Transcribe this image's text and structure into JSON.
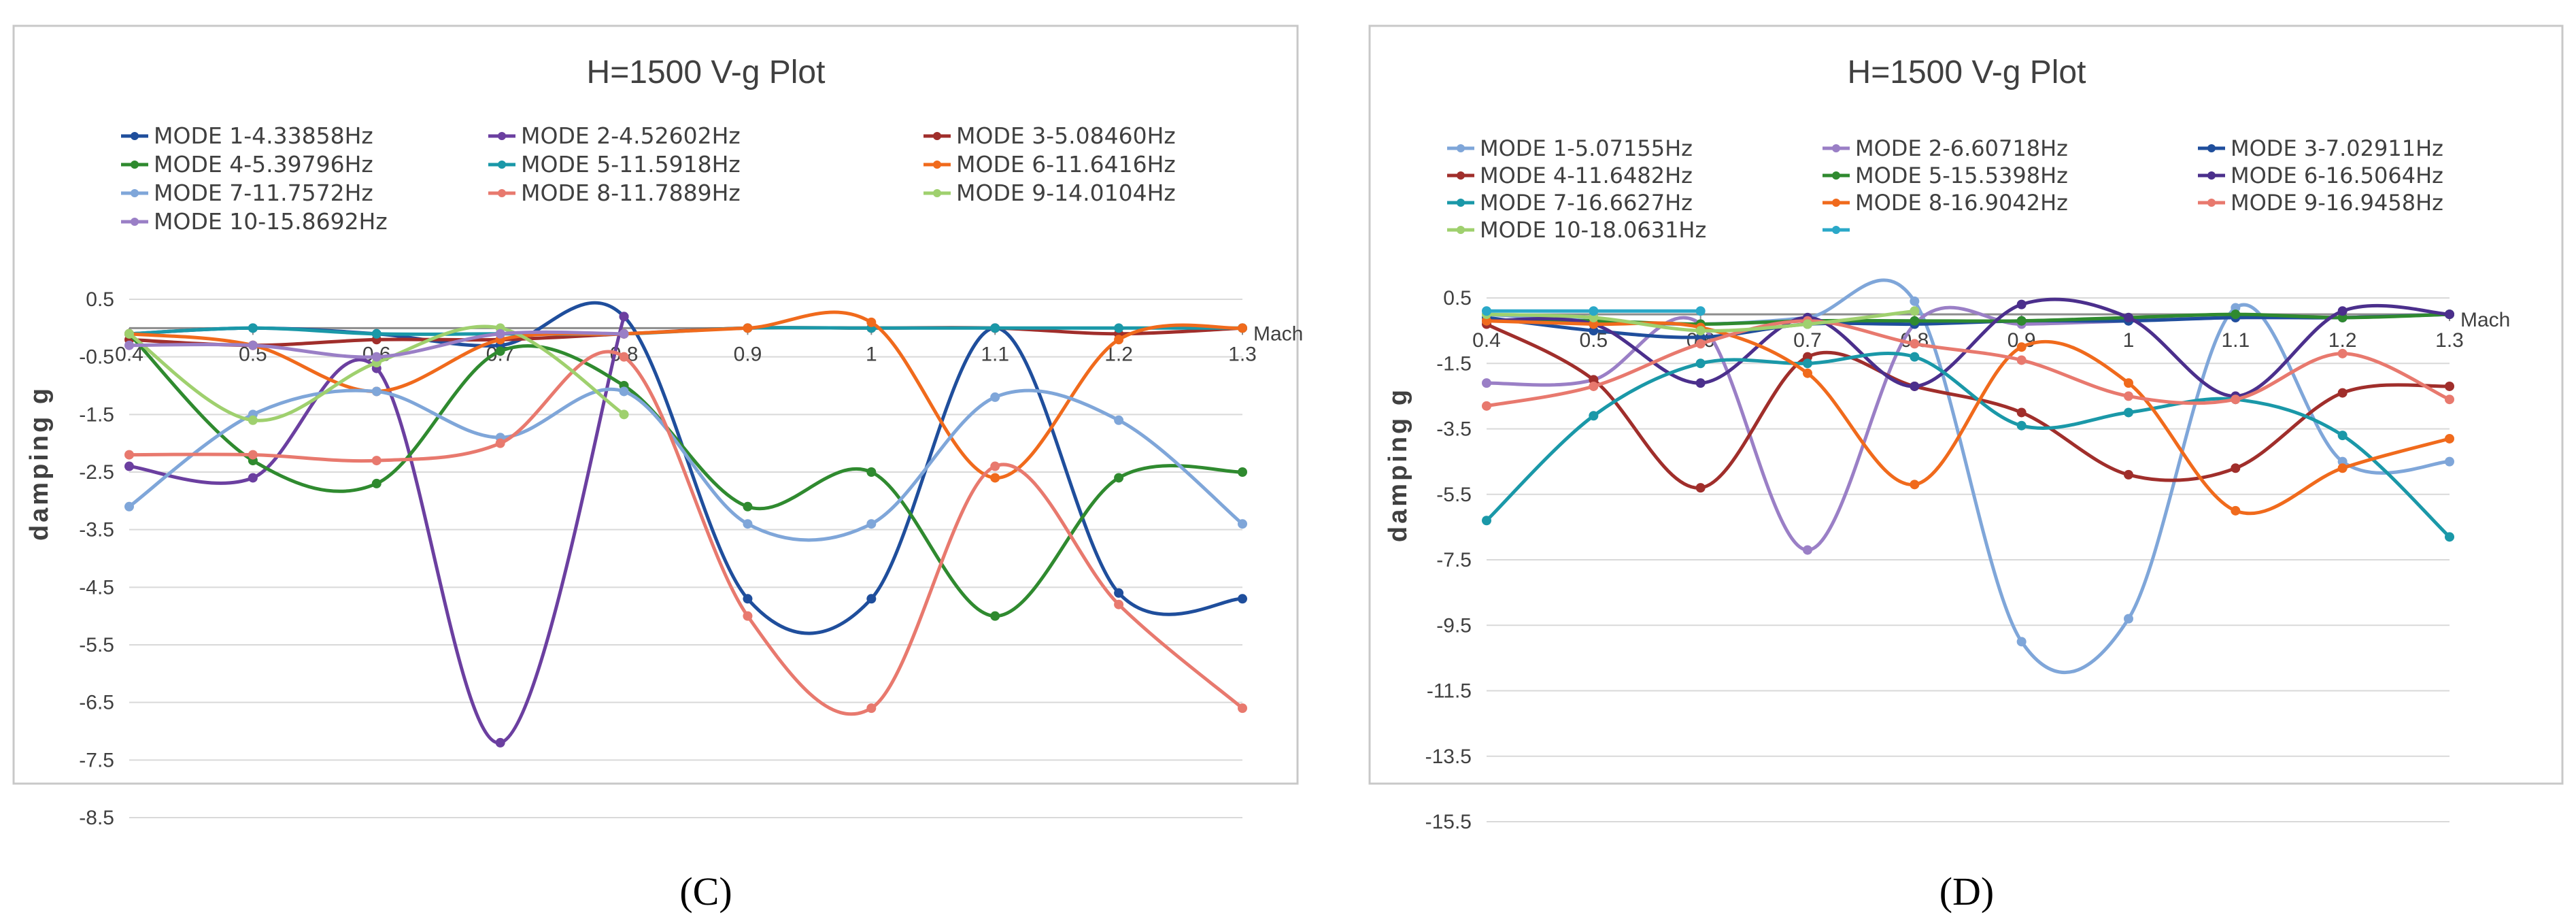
{
  "chart_data": [
    {
      "type": "line",
      "title": "H=1500 V-g Plot",
      "xlabel": "Mach",
      "ylabel": "damping g",
      "caption": "(C)",
      "x": [
        0.4,
        0.5,
        0.6,
        0.7,
        0.8,
        0.9,
        1.0,
        1.1,
        1.2,
        1.3
      ],
      "x_ticks": [
        "0.4",
        "0.5",
        "0.6",
        "0.7",
        "0.8",
        "0.9",
        "1",
        "1.1",
        "1.2",
        "1.3"
      ],
      "ylim": [
        -8.5,
        0.5
      ],
      "y_ticks": [
        "0.5",
        "-0.5",
        "-1.5",
        "-2.5",
        "-3.5",
        "-4.5",
        "-5.5",
        "-6.5",
        "-7.5",
        "-8.5"
      ],
      "series": [
        {
          "name": "MODE 1-4.33858Hz",
          "color": "#1f4e9c",
          "values": [
            -0.1,
            0.0,
            -0.1,
            -0.3,
            0.2,
            -4.7,
            -4.7,
            0.0,
            -4.6,
            -4.7
          ]
        },
        {
          "name": "MODE 2-4.52602Hz",
          "color": "#6b3fa0",
          "values": [
            -2.4,
            -2.6,
            -0.7,
            -7.2,
            0.2,
            null,
            null,
            null,
            null,
            null
          ]
        },
        {
          "name": "MODE 3-5.08460Hz",
          "color": "#a02e2b",
          "values": [
            -0.2,
            -0.3,
            -0.2,
            -0.2,
            -0.1,
            0.0,
            0.0,
            0.0,
            -0.1,
            0.0
          ]
        },
        {
          "name": "MODE 4-5.39796Hz",
          "color": "#2f8a2f",
          "values": [
            -0.1,
            -2.3,
            -2.7,
            -0.4,
            -1.0,
            -3.1,
            -2.5,
            -5.0,
            -2.6,
            -2.5
          ]
        },
        {
          "name": "MODE 5-11.5918Hz",
          "color": "#1a98a8",
          "values": [
            -0.1,
            0.0,
            -0.1,
            -0.1,
            -0.1,
            0.0,
            0.0,
            0.0,
            0.0,
            0.0
          ]
        },
        {
          "name": "MODE 6-11.6416Hz",
          "color": "#f06a1c",
          "values": [
            -0.1,
            -0.3,
            -1.1,
            -0.2,
            -0.1,
            0.0,
            0.1,
            -2.6,
            -0.2,
            0.0
          ]
        },
        {
          "name": "MODE 7-11.7572Hz",
          "color": "#7fa6d9",
          "values": [
            -3.1,
            -1.5,
            -1.1,
            -1.9,
            -1.1,
            -3.4,
            -3.4,
            -1.2,
            -1.6,
            -3.4
          ]
        },
        {
          "name": "MODE 8-11.7889Hz",
          "color": "#e8796e",
          "values": [
            -2.2,
            -2.2,
            -2.3,
            -2.0,
            -0.5,
            -5.0,
            -6.6,
            -2.4,
            -4.8,
            -6.6
          ]
        },
        {
          "name": "MODE 9-14.0104Hz",
          "color": "#9fd06e",
          "values": [
            -0.1,
            -1.6,
            -0.6,
            0.0,
            -1.5,
            null,
            null,
            null,
            null,
            null
          ]
        },
        {
          "name": "MODE 10-15.8692Hz",
          "color": "#9a7fc6",
          "values": [
            -0.3,
            -0.3,
            -0.5,
            -0.1,
            -0.1,
            null,
            null,
            null,
            null,
            null
          ]
        }
      ]
    },
    {
      "type": "line",
      "title": "H=1500 V-g Plot",
      "xlabel": "Mach",
      "ylabel": "damping g",
      "caption": "(D)",
      "x": [
        0.4,
        0.5,
        0.6,
        0.7,
        0.8,
        0.9,
        1.0,
        1.1,
        1.2,
        1.3
      ],
      "x_ticks": [
        "0.4",
        "0.5",
        "0.6",
        "0.7",
        "0.8",
        "0.9",
        "1",
        "1.1",
        "1.2",
        "1.3"
      ],
      "ylim": [
        -15.5,
        0.5
      ],
      "y_ticks": [
        "0.5",
        "-1.5",
        "-3.5",
        "-5.5",
        "-7.5",
        "-9.5",
        "-11.5",
        "-13.5",
        "-15.5"
      ],
      "series": [
        {
          "name": "MODE 1-5.07155Hz",
          "color": "#7fa6d9",
          "values": [
            0.0,
            -0.2,
            -0.3,
            -0.1,
            0.4,
            -10.0,
            -9.3,
            0.2,
            -4.5,
            -4.5
          ]
        },
        {
          "name": "MODE 2-6.60718Hz",
          "color": "#9a7fc6",
          "values": [
            -2.1,
            -2.0,
            -0.3,
            -7.2,
            -0.3,
            -0.3,
            -0.2,
            -0.1,
            -0.1,
            0.0
          ]
        },
        {
          "name": "MODE 3-7.02911Hz",
          "color": "#1f4e9c",
          "values": [
            -0.1,
            -0.5,
            -0.7,
            -0.3,
            -0.3,
            -0.2,
            -0.2,
            -0.1,
            -0.1,
            0.0
          ]
        },
        {
          "name": "MODE 4-11.6482Hz",
          "color": "#a02e2b",
          "values": [
            -0.3,
            -2.0,
            -5.3,
            -1.3,
            -2.2,
            -3.0,
            -4.9,
            -4.7,
            -2.4,
            -2.2
          ]
        },
        {
          "name": "MODE 5-15.5398Hz",
          "color": "#2f8a2f",
          "values": [
            -0.2,
            -0.2,
            -0.3,
            -0.2,
            -0.2,
            -0.2,
            -0.1,
            0.0,
            -0.1,
            0.0
          ]
        },
        {
          "name": "MODE 6-16.5064Hz",
          "color": "#4b2f8c",
          "values": [
            -0.2,
            -0.3,
            -2.1,
            -0.1,
            -2.2,
            0.3,
            -0.1,
            -2.5,
            0.1,
            0.0
          ]
        },
        {
          "name": "MODE 7-16.6627Hz",
          "color": "#1a98a8",
          "values": [
            -6.3,
            -3.1,
            -1.5,
            -1.5,
            -1.3,
            -3.4,
            -3.0,
            -2.6,
            -3.7,
            -6.8
          ]
        },
        {
          "name": "MODE 8-16.9042Hz",
          "color": "#f06a1c",
          "values": [
            -0.2,
            -0.3,
            -0.4,
            -1.8,
            -5.2,
            -1.0,
            -2.1,
            -6.0,
            -4.7,
            -3.8
          ]
        },
        {
          "name": "MODE 9-16.9458Hz",
          "color": "#e8796e",
          "values": [
            -2.8,
            -2.2,
            -0.9,
            -0.2,
            -0.9,
            -1.4,
            -2.5,
            -2.6,
            -1.2,
            -2.6
          ]
        },
        {
          "name": "MODE 10-18.0631Hz",
          "color": "#9fd06e",
          "values": [
            0.0,
            -0.1,
            -0.5,
            -0.3,
            0.1,
            null,
            null,
            null,
            null,
            null
          ]
        },
        {
          "name": "",
          "color": "#2aa8c8",
          "values": [
            0.1,
            0.1,
            0.1,
            null,
            null,
            null,
            null,
            null,
            null,
            null
          ]
        }
      ]
    }
  ]
}
